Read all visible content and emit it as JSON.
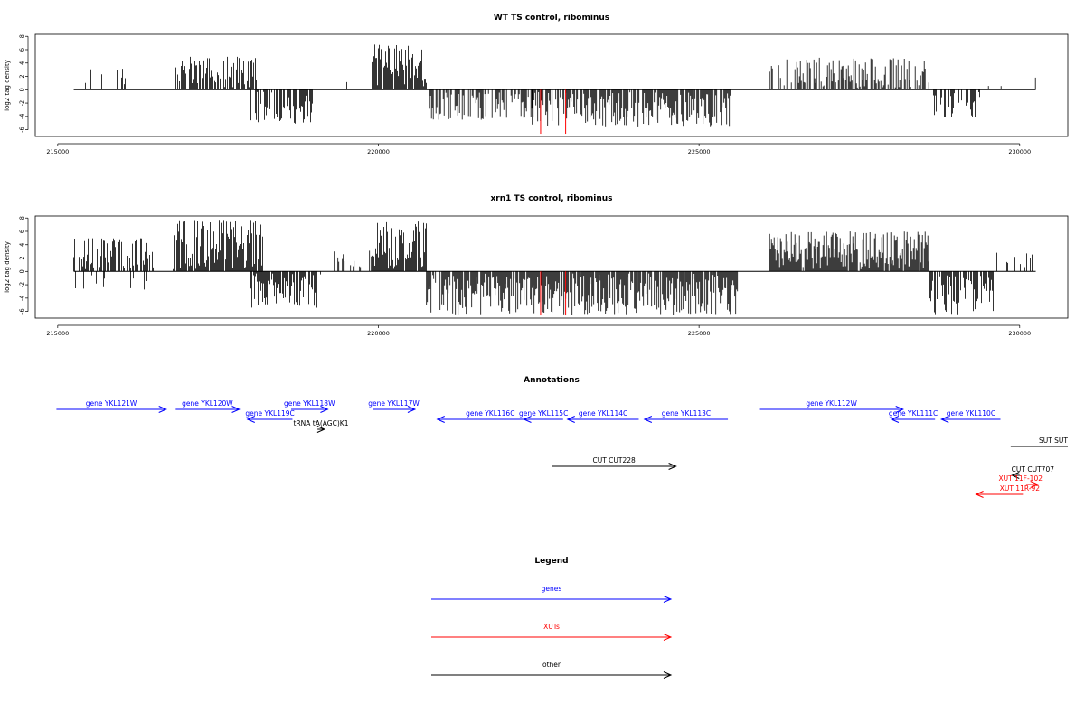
{
  "chart_data": [
    {
      "type": "bar",
      "title": "WT TS control, ribominus",
      "xlabel": "",
      "ylabel": "log2 tag density",
      "xlim": [
        214650,
        230750
      ],
      "ylim": [
        -7,
        8.3
      ],
      "xticks": [
        215000,
        220000,
        225000,
        230000
      ],
      "xtick_labels": [
        "215000",
        "220000",
        "225000",
        "230000"
      ],
      "yticks": [
        -6,
        -4,
        -2,
        0,
        2,
        4,
        6,
        8
      ],
      "ytick_labels": [
        "-6",
        "-4",
        "-2",
        "0",
        "2",
        "4",
        "6",
        "8"
      ],
      "grid": false,
      "highlights": [
        {
          "x": 222530,
          "y": -6.6,
          "color": "#ff0000"
        },
        {
          "x": 222920,
          "y": -6.6,
          "color": "#ff0000"
        }
      ],
      "regions": [
        {
          "start": 215250,
          "end": 216100,
          "sign": 1,
          "max": 3.2,
          "density": 0.22
        },
        {
          "start": 216100,
          "end": 216800,
          "sign": 1,
          "max": 2.0,
          "density": 0.08
        },
        {
          "start": 216800,
          "end": 218100,
          "sign": 1,
          "max": 5.0,
          "density": 0.7
        },
        {
          "start": 218000,
          "end": 219000,
          "sign": -1,
          "max": 5.2,
          "density": 0.6
        },
        {
          "start": 219100,
          "end": 219800,
          "sign": 1,
          "max": 3.6,
          "density": 0.06
        },
        {
          "start": 219900,
          "end": 220750,
          "sign": 1,
          "max": 6.8,
          "density": 1.0
        },
        {
          "start": 220800,
          "end": 222400,
          "sign": -1,
          "max": 4.5,
          "density": 0.7
        },
        {
          "start": 222400,
          "end": 225500,
          "sign": -1,
          "max": 5.5,
          "density": 0.85
        },
        {
          "start": 225500,
          "end": 226100,
          "sign": 1,
          "max": 2.0,
          "density": 0.06
        },
        {
          "start": 226100,
          "end": 228600,
          "sign": 1,
          "max": 4.8,
          "density": 0.55
        },
        {
          "start": 228600,
          "end": 229400,
          "sign": -1,
          "max": 4.4,
          "density": 0.55
        },
        {
          "start": 229400,
          "end": 230250,
          "sign": 1,
          "max": 2.5,
          "density": 0.08
        }
      ]
    },
    {
      "type": "bar",
      "title": "xrn1 TS control, ribominus",
      "xlabel": "",
      "ylabel": "log2 tag density",
      "xlim": [
        214650,
        230750
      ],
      "ylim": [
        -7,
        8.3
      ],
      "xticks": [
        215000,
        220000,
        225000,
        230000
      ],
      "xtick_labels": [
        "215000",
        "220000",
        "225000",
        "230000"
      ],
      "yticks": [
        -6,
        -4,
        -2,
        0,
        2,
        4,
        6,
        8
      ],
      "ytick_labels": [
        "-6",
        "-4",
        "-2",
        "0",
        "2",
        "4",
        "6",
        "8"
      ],
      "grid": false,
      "highlights": [
        {
          "x": 222530,
          "y": -6.6,
          "color": "#ff0000"
        },
        {
          "x": 222920,
          "y": -6.6,
          "color": "#ff0000"
        }
      ],
      "regions": [
        {
          "start": 215250,
          "end": 216500,
          "sign": 1,
          "max": 5.0,
          "density": 0.8
        },
        {
          "start": 215250,
          "end": 216400,
          "sign": -1,
          "max": 2.8,
          "density": 0.15
        },
        {
          "start": 216800,
          "end": 218200,
          "sign": 1,
          "max": 7.8,
          "density": 1.0
        },
        {
          "start": 218000,
          "end": 219100,
          "sign": -1,
          "max": 5.5,
          "density": 0.85
        },
        {
          "start": 219200,
          "end": 219900,
          "sign": 1,
          "max": 3.2,
          "density": 0.25
        },
        {
          "start": 219900,
          "end": 220750,
          "sign": 1,
          "max": 7.6,
          "density": 1.0
        },
        {
          "start": 220750,
          "end": 225600,
          "sign": -1,
          "max": 6.5,
          "density": 0.95
        },
        {
          "start": 226100,
          "end": 228600,
          "sign": 1,
          "max": 6.0,
          "density": 1.0
        },
        {
          "start": 228600,
          "end": 229600,
          "sign": -1,
          "max": 6.5,
          "density": 0.85
        },
        {
          "start": 229600,
          "end": 230250,
          "sign": 1,
          "max": 3.0,
          "density": 0.2
        }
      ]
    }
  ],
  "annotations": {
    "title": "Annotations",
    "xlim": [
      214650,
      230750
    ],
    "features": [
      {
        "label": "gene YKL121W",
        "start": 214980,
        "end": 216690,
        "strand": "+",
        "row": 0,
        "color": "#0000ff"
      },
      {
        "label": "gene YKL120W",
        "start": 216840,
        "end": 217830,
        "strand": "+",
        "row": 0,
        "color": "#0000ff"
      },
      {
        "label": "gene YKL119C",
        "start": 217960,
        "end": 218660,
        "strand": "-",
        "row": 1,
        "color": "#0000ff"
      },
      {
        "label": "gene YKL118W",
        "start": 218640,
        "end": 219210,
        "strand": "+",
        "row": 0,
        "color": "#0000ff"
      },
      {
        "label": "tRNA tA(AGC)K1",
        "start": 219050,
        "end": 219160,
        "strand": "+",
        "row": 2,
        "color": "#000000"
      },
      {
        "label": "gene YKL117W",
        "start": 219910,
        "end": 220570,
        "strand": "+",
        "row": 0,
        "color": "#0000ff"
      },
      {
        "label": "gene YKL116C",
        "start": 220920,
        "end": 222570,
        "strand": "-",
        "row": 1,
        "color": "#0000ff"
      },
      {
        "label": "gene YKL115C",
        "start": 222270,
        "end": 222880,
        "strand": "-",
        "row": 1,
        "color": "#0000ff"
      },
      {
        "label": "gene YKL114C",
        "start": 222950,
        "end": 224060,
        "strand": "-",
        "row": 1,
        "color": "#0000ff"
      },
      {
        "label": "gene YKL113C",
        "start": 224150,
        "end": 225450,
        "strand": "-",
        "row": 1,
        "color": "#0000ff"
      },
      {
        "label": "gene YKL112W",
        "start": 225950,
        "end": 228180,
        "strand": "+",
        "row": 0,
        "color": "#0000ff"
      },
      {
        "label": "gene YKL111C",
        "start": 228000,
        "end": 228680,
        "strand": "-",
        "row": 1,
        "color": "#0000ff"
      },
      {
        "label": "gene YKL110C",
        "start": 228780,
        "end": 229700,
        "strand": "-",
        "row": 1,
        "color": "#0000ff"
      },
      {
        "label": "SUT SUT",
        "start": 229860,
        "end": 230750,
        "strand": "+",
        "row": 3,
        "color": "#000000"
      },
      {
        "label": "CUT CUT228",
        "start": 222710,
        "end": 224640,
        "strand": "+",
        "row": 5,
        "color": "#000000"
      },
      {
        "label": "CUT CUT707",
        "start": 229880,
        "end": 230000,
        "strand": "-",
        "row": 6,
        "color": "#000000"
      },
      {
        "label": "XUT 11F-102",
        "start": 230100,
        "end": 230280,
        "strand": "+",
        "row": 7,
        "color": "#ff0000"
      },
      {
        "label": "XUT 11R-92",
        "start": 229320,
        "end": 230050,
        "strand": "-",
        "row": 8,
        "color": "#ff0000"
      }
    ]
  },
  "legend": {
    "title": "Legend",
    "entries": [
      {
        "label": "genes",
        "color": "#0000ff"
      },
      {
        "label": "XUTs",
        "color": "#ff0000"
      },
      {
        "label": "other",
        "color": "#000000"
      }
    ]
  }
}
